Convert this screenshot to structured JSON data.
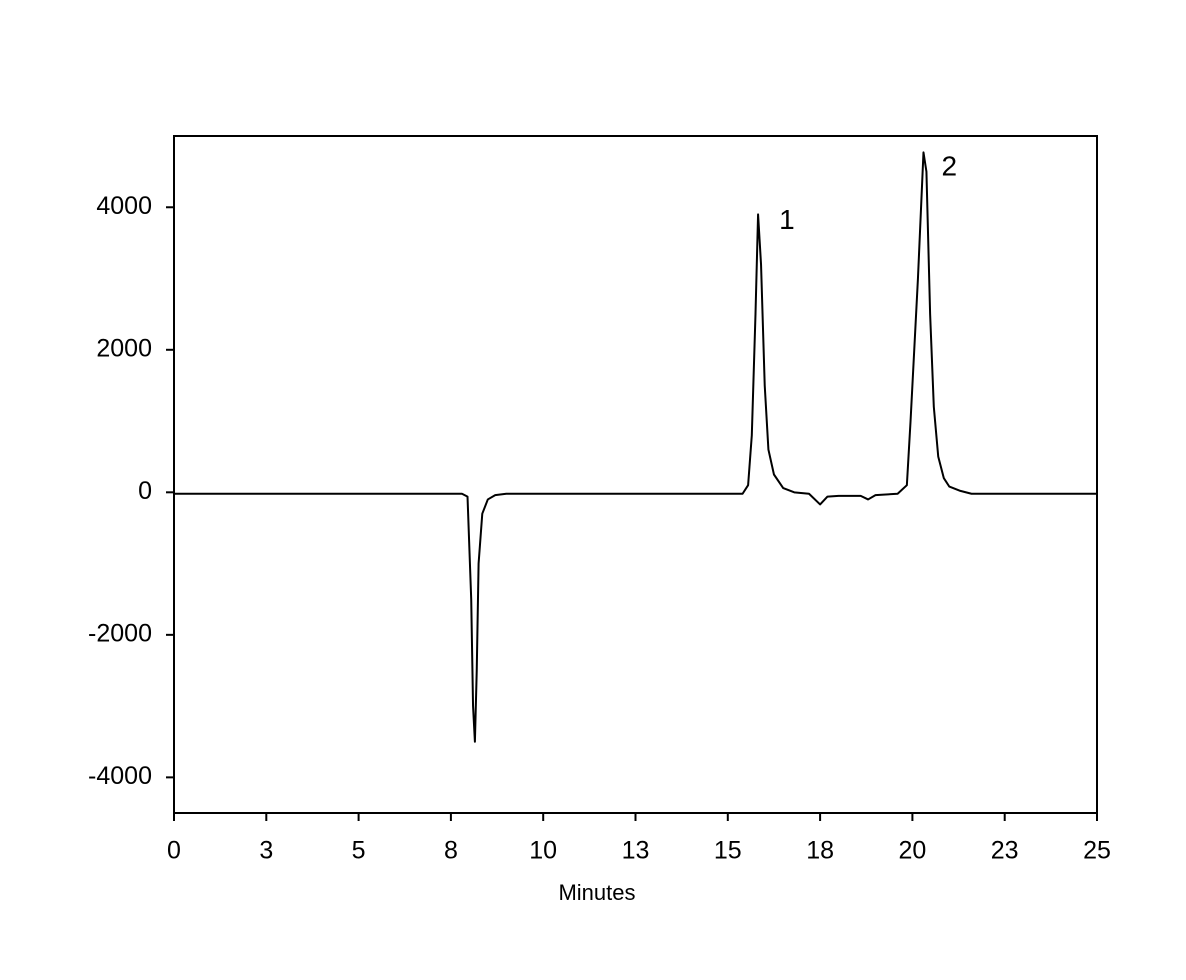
{
  "chart_data": {
    "type": "line",
    "x_label": "Minutes",
    "xlim": [
      0,
      25
    ],
    "xticks": [
      0,
      {
        "value": 2.5,
        "label": "3"
      },
      5,
      {
        "value": 7.5,
        "label": "8"
      },
      10,
      {
        "value": 12.5,
        "label": "13"
      },
      15,
      {
        "value": 17.5,
        "label": "18"
      },
      20,
      {
        "value": 22.5,
        "label": "23"
      },
      25
    ],
    "ylim": [
      -4500,
      5000
    ],
    "yticks": [
      -4000,
      -2000,
      0,
      2000,
      4000
    ],
    "grid": false,
    "series": [
      {
        "color": "#000000",
        "x": [
          0,
          7.5,
          7.8,
          7.95,
          8.05,
          8.1,
          8.15,
          8.2,
          8.25,
          8.35,
          8.5,
          8.7,
          9.0,
          15.0,
          15.4,
          15.55,
          15.65,
          15.75,
          15.82,
          15.9,
          16.0,
          16.1,
          16.25,
          16.5,
          16.8,
          17.2,
          17.5,
          17.7,
          18.0,
          18.6,
          18.8,
          19.0,
          19.6,
          19.85,
          19.95,
          20.15,
          20.3,
          20.38,
          20.48,
          20.58,
          20.7,
          20.85,
          21.0,
          21.3,
          21.6,
          22,
          25
        ],
        "values": [
          -20,
          -20,
          -20,
          -60,
          -1500,
          -3000,
          -3500,
          -2500,
          -1000,
          -300,
          -100,
          -40,
          -20,
          -20,
          -20,
          100,
          800,
          2500,
          3900,
          3200,
          1500,
          600,
          250,
          60,
          0,
          -20,
          -170,
          -60,
          -50,
          -50,
          -100,
          -40,
          -20,
          100,
          1000,
          3000,
          4770,
          4500,
          2500,
          1200,
          500,
          200,
          80,
          20,
          -20,
          -20,
          -20
        ]
      }
    ],
    "annotations": [
      {
        "text": "1",
        "x": 16.6,
        "y": 3800
      },
      {
        "text": "2",
        "x": 21.0,
        "y": 4550
      }
    ]
  }
}
